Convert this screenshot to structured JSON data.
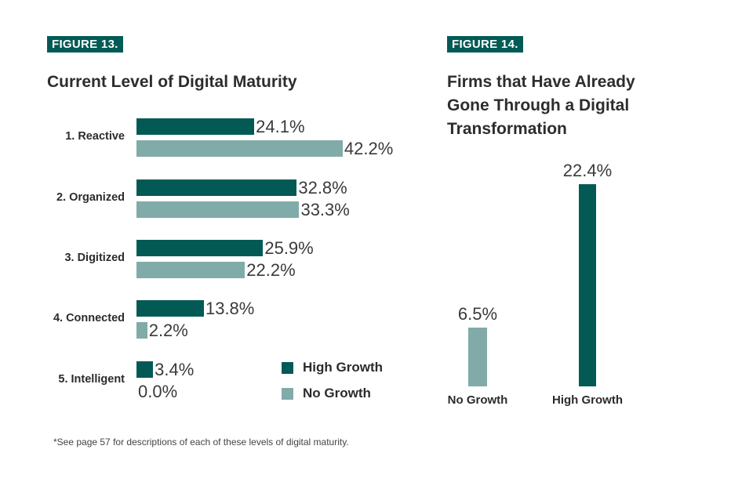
{
  "colors": {
    "high_growth": "#035a55",
    "no_growth": "#80aba8"
  },
  "chart_data": [
    {
      "type": "bar",
      "orientation": "horizontal",
      "figure_label": "FIGURE 13.",
      "title": "Current Level of Digital Maturity",
      "categories": [
        "1. Reactive",
        "2. Organized",
        "3. Digitized",
        "4. Connected",
        "5. Intelligent"
      ],
      "series": [
        {
          "name": "High Growth",
          "values": [
            24.1,
            32.8,
            25.9,
            13.8,
            3.4
          ],
          "labels": [
            "24.1%",
            "32.8%",
            "25.9%",
            "13.8%",
            "3.4%"
          ]
        },
        {
          "name": "No Growth",
          "values": [
            42.2,
            33.3,
            22.2,
            2.2,
            0.0
          ],
          "labels": [
            "42.2%",
            "33.3%",
            "22.2%",
            "2.2%",
            "0.0%"
          ]
        }
      ],
      "legend": "bottom-right",
      "grid": false,
      "footnote": "*See page 57 for descriptions of each of these levels of digital maturity."
    },
    {
      "type": "bar",
      "orientation": "vertical",
      "figure_label": "FIGURE 14.",
      "title_lines": [
        "Firms that Have Already",
        "Gone Through a Digital",
        "Transformation"
      ],
      "categories": [
        "No Growth",
        "High Growth"
      ],
      "values": [
        6.5,
        22.4
      ],
      "labels": [
        "6.5%",
        "22.4%"
      ],
      "grid": false
    }
  ]
}
